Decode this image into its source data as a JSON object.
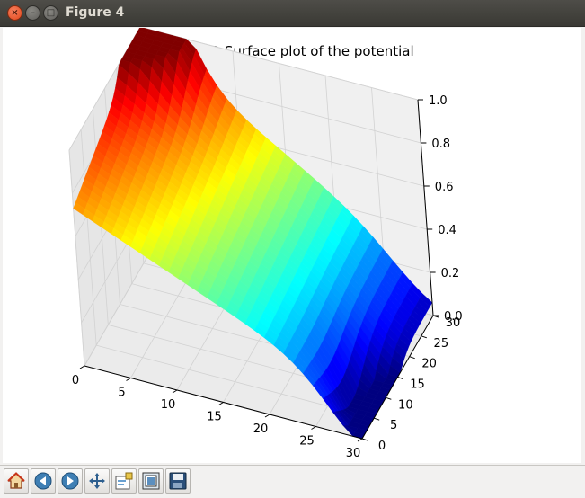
{
  "window": {
    "title": "Figure 4",
    "close_glyph": "×",
    "min_glyph": "–",
    "max_glyph": "□"
  },
  "toolbar": {
    "buttons": [
      {
        "name": "home-icon",
        "tooltip": ""
      },
      {
        "name": "back-arrow-icon",
        "tooltip": ""
      },
      {
        "name": "forward-arrow-icon",
        "tooltip": ""
      },
      {
        "name": "pan-move-icon",
        "tooltip": ""
      },
      {
        "name": "configure-subplots-icon",
        "tooltip": ""
      },
      {
        "name": "zoom-to-rect-icon",
        "tooltip": ""
      },
      {
        "name": "save-floppy-icon",
        "tooltip": ""
      }
    ]
  },
  "chart_data": {
    "type": "surface",
    "title": "The 3D Surface plot of the potential",
    "x_ticks": [
      "0",
      "5",
      "10",
      "15",
      "20",
      "25",
      "30"
    ],
    "y_ticks": [
      "0",
      "5",
      "10",
      "15",
      "20",
      "25",
      "30"
    ],
    "z_ticks": [
      "0.0",
      "0.2",
      "0.4",
      "0.6",
      "0.8",
      "1.0"
    ],
    "xlim": [
      0,
      30
    ],
    "ylim": [
      0,
      30
    ],
    "zlim": [
      0,
      1
    ],
    "colormap": "jet",
    "grid": true
  }
}
